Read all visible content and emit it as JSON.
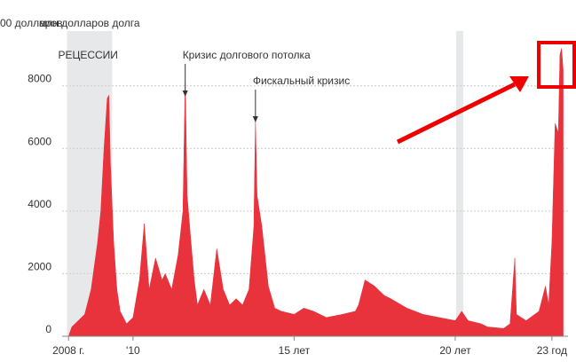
{
  "chart_data": {
    "type": "area",
    "title": "млн долларов долга",
    "subtitle": "00 долларов",
    "x": [
      2008.0,
      2008.1,
      2008.3,
      2008.5,
      2008.7,
      2008.9,
      2009.0,
      2009.1,
      2009.2,
      2009.25,
      2009.3,
      2009.4,
      2009.5,
      2009.6,
      2009.8,
      2010.0,
      2010.2,
      2010.35,
      2010.5,
      2010.7,
      2010.9,
      2011.0,
      2011.2,
      2011.4,
      2011.55,
      2011.62,
      2011.68,
      2011.8,
      2011.9,
      2012.0,
      2012.2,
      2012.4,
      2012.6,
      2012.8,
      2013.0,
      2013.2,
      2013.4,
      2013.6,
      2013.75,
      2013.8,
      2013.85,
      2014.0,
      2014.2,
      2014.4,
      2014.6,
      2015.0,
      2015.3,
      2015.6,
      2016.0,
      2016.5,
      2016.9,
      2017.0,
      2017.2,
      2017.5,
      2017.8,
      2018.0,
      2018.5,
      2019.0,
      2019.5,
      2020.0,
      2020.2,
      2020.4,
      2020.8,
      2021.0,
      2021.5,
      2021.7,
      2021.85,
      2021.9,
      2022.2,
      2022.6,
      2022.8,
      2022.9,
      2023.0,
      2023.1,
      2023.2,
      2023.25,
      2023.3,
      2023.35
    ],
    "values": [
      0,
      300,
      500,
      700,
      1500,
      3000,
      4000,
      6000,
      7600,
      7700,
      5500,
      3000,
      1500,
      800,
      400,
      600,
      1800,
      3600,
      1500,
      2500,
      1800,
      2000,
      1500,
      2600,
      4000,
      8200,
      4500,
      3000,
      1800,
      1000,
      1500,
      1000,
      2800,
      1500,
      1000,
      1200,
      1000,
      1500,
      3500,
      6900,
      4500,
      3500,
      1600,
      900,
      800,
      700,
      900,
      800,
      600,
      700,
      800,
      1000,
      1800,
      1600,
      1300,
      1200,
      900,
      700,
      600,
      500,
      800,
      500,
      400,
      300,
      250,
      400,
      2500,
      700,
      500,
      800,
      1600,
      1000,
      3000,
      6800,
      6500,
      9000,
      9200,
      8500
    ],
    "color": "#e8323c",
    "xlim": [
      2007.8,
      2023.5
    ],
    "xticks": [
      {
        "value": 2008,
        "label": "2008 г."
      },
      {
        "value": 2010,
        "label": "'10"
      },
      {
        "value": 2015,
        "label": "15 лет"
      },
      {
        "value": 2020,
        "label": "20 лет"
      },
      {
        "value": 2023,
        "label": "23 год"
      }
    ],
    "ylim": [
      0,
      9750
    ],
    "yticks": [
      0,
      2000,
      4000,
      6000,
      8000
    ],
    "grid": true,
    "recession_label": "РЕЦЕССИИ",
    "recessions": [
      [
        2007.95,
        2009.35
      ],
      [
        2020.03,
        2020.25
      ]
    ],
    "annotations": [
      {
        "text": "Кризис долгового потолка",
        "x": 2011.62
      },
      {
        "text": "Фискальный кризис",
        "x": 2013.8
      }
    ]
  }
}
